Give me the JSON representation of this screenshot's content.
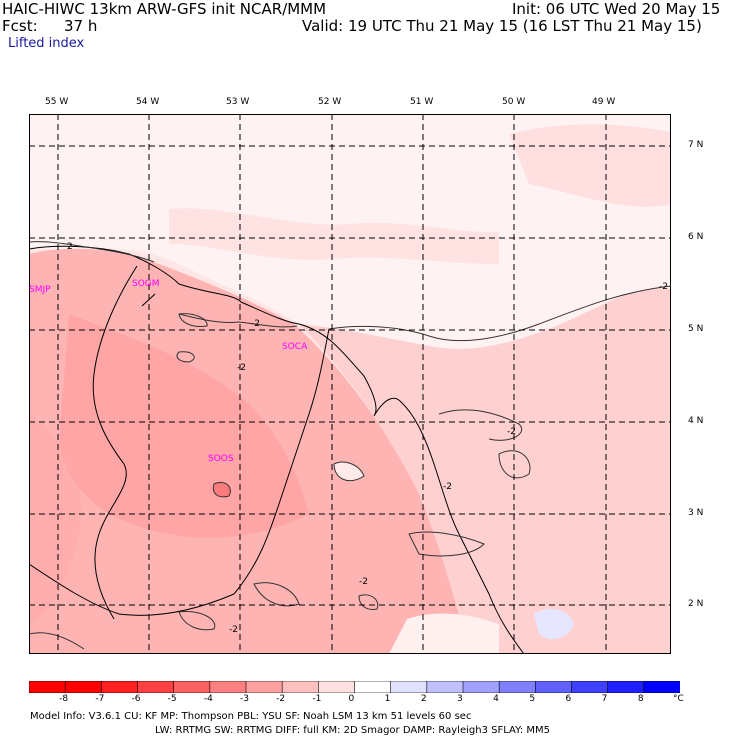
{
  "header": {
    "model_line": "HAIC-HIWC 13km ARW-GFS init   NCAR/MMM",
    "fcst_label": "Fcst:",
    "fcst_value": "37 h",
    "field_name": "Lifted index",
    "init_line": "Init: 06 UTC Wed 20 May 15",
    "valid_line": "Valid: 19 UTC Thu 21 May 15 (16 LST Thu 21 May 15)"
  },
  "axes": {
    "longitudes": [
      "55 W",
      "54 W",
      "53 W",
      "52 W",
      "51 W",
      "50 W",
      "49 W"
    ],
    "latitudes": [
      "7 N",
      "6 N",
      "5 N",
      "4 N",
      "3 N",
      "2 N"
    ]
  },
  "stations": [
    "SMJP",
    "SOGM",
    "SOCA",
    "SOOS"
  ],
  "contour_labels": [
    "2",
    "-2",
    "-2",
    "-2",
    "-2",
    "-2",
    "-2",
    "-2"
  ],
  "colorbar": {
    "unit": "°C",
    "ticks": [
      "-8",
      "-7",
      "-6",
      "-5",
      "-4",
      "-3",
      "-2",
      "-1",
      "0",
      "1",
      "2",
      "3",
      "4",
      "5",
      "6",
      "7",
      "8"
    ],
    "colors": [
      "#ff0000",
      "#ff2020",
      "#ff4040",
      "#ff6060",
      "#ff8080",
      "#ffa0a0",
      "#ffc0c0",
      "#ffe0e0",
      "#ffffff",
      "#e0e0ff",
      "#c0c0ff",
      "#a0a0ff",
      "#8080ff",
      "#6060ff",
      "#4040ff",
      "#2020ff",
      "#0000ff"
    ]
  },
  "footer": {
    "line1": "Model Info: V3.6.1     CU: KF        MP: Thompson      PBL: YSU        SF: Noah LSM      13 km    51 levels   60 sec",
    "line2": "LW: RRTMG    SW: RRTMG   DIFF: full     KM: 2D Smagor DAMP: Rayleigh3   SFLAY: MM5"
  }
}
